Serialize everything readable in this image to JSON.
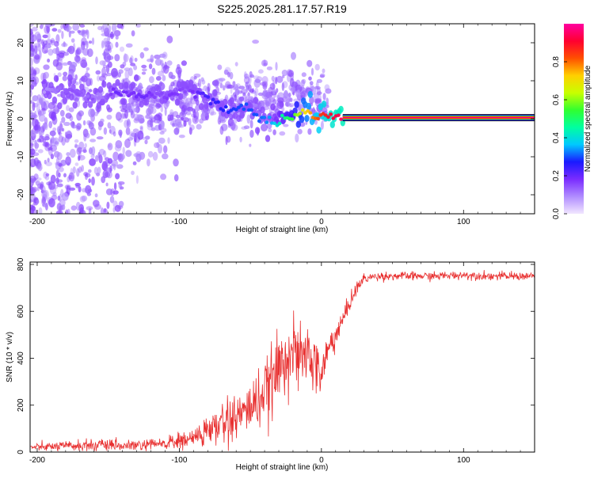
{
  "title": "S225.2025.281.17.57.R19",
  "chart_data": [
    {
      "type": "heatmap",
      "name": "spectrogram",
      "xlabel": "Height of straight line (km)",
      "ylabel": "Frequency (Hz)",
      "xlim": [
        -205,
        150
      ],
      "ylim": [
        -25,
        25
      ],
      "xticks": [
        -200,
        -100,
        0,
        100
      ],
      "yticks": [
        -20,
        -10,
        0,
        10,
        20
      ],
      "colorbar": {
        "label": "Normalized spectral amplitude",
        "range": [
          0,
          1
        ],
        "ticks": [
          "0.0",
          "0.2",
          "0.4",
          "0.6",
          "0.8"
        ],
        "tick_values": [
          0.0,
          0.2,
          0.4,
          0.6,
          0.8
        ],
        "colors": [
          "#f2e6ff",
          "#b08cff",
          "#7a2cff",
          "#1a1aff",
          "#00c8ff",
          "#00ffa0",
          "#30ff30",
          "#c8ff00",
          "#ffd000",
          "#ff5000",
          "#ff0030",
          "#ff00a0"
        ]
      },
      "ridge": {
        "x": [
          -195,
          -185,
          -175,
          -165,
          -155,
          -145,
          -135,
          -125,
          -115,
          -105,
          -95,
          -85,
          -75,
          -65,
          -55,
          -45,
          -35,
          -28,
          -20,
          -12,
          -5,
          0,
          5,
          10,
          15
        ],
        "y": [
          7,
          7.5,
          7,
          6.5,
          6,
          7,
          6.5,
          6,
          6.5,
          6,
          8,
          6.5,
          4,
          2.5,
          3,
          1,
          -1,
          0,
          0.5,
          2,
          0.5,
          0.5,
          1,
          0.3,
          0.3
        ],
        "amplitude": [
          0.08,
          0.12,
          0.15,
          0.12,
          0.1,
          0.2,
          0.18,
          0.2,
          0.15,
          0.18,
          0.15,
          0.22,
          0.25,
          0.28,
          0.3,
          0.3,
          0.35,
          0.45,
          0.55,
          0.7,
          0.8,
          0.85,
          0.9,
          0.92,
          0.95
        ]
      },
      "steady_line": {
        "x_start": 15,
        "x_end": 150,
        "frequency": 0.3,
        "amplitude": 0.97
      }
    },
    {
      "type": "line",
      "name": "snr",
      "xlabel": "Height of straight line (km)",
      "ylabel": "SNR (10 * v/v)",
      "xlim": [
        -205,
        150
      ],
      "ylim": [
        0,
        810
      ],
      "xticks": [
        -200,
        -100,
        0,
        100
      ],
      "yticks": [
        0,
        200,
        400,
        600,
        800
      ],
      "color": "#e83030",
      "series": [
        {
          "name": "SNR",
          "x": [
            -205,
            -180,
            -160,
            -140,
            -120,
            -100,
            -90,
            -80,
            -70,
            -60,
            -50,
            -40,
            -30,
            -25,
            -20,
            -15,
            -10,
            -5,
            0,
            5,
            10,
            15,
            20,
            25,
            30,
            40,
            60,
            80,
            100,
            120,
            150
          ],
          "values": [
            20,
            25,
            30,
            25,
            30,
            45,
            60,
            90,
            120,
            150,
            190,
            250,
            350,
            420,
            430,
            380,
            430,
            370,
            330,
            440,
            500,
            560,
            640,
            700,
            740,
            750,
            750,
            750,
            755,
            750,
            750
          ],
          "noise": [
            12,
            18,
            22,
            18,
            22,
            30,
            40,
            55,
            75,
            85,
            95,
            110,
            130,
            130,
            120,
            120,
            110,
            100,
            90,
            70,
            50,
            40,
            30,
            25,
            18,
            15,
            15,
            15,
            15,
            15,
            15
          ]
        }
      ]
    }
  ]
}
